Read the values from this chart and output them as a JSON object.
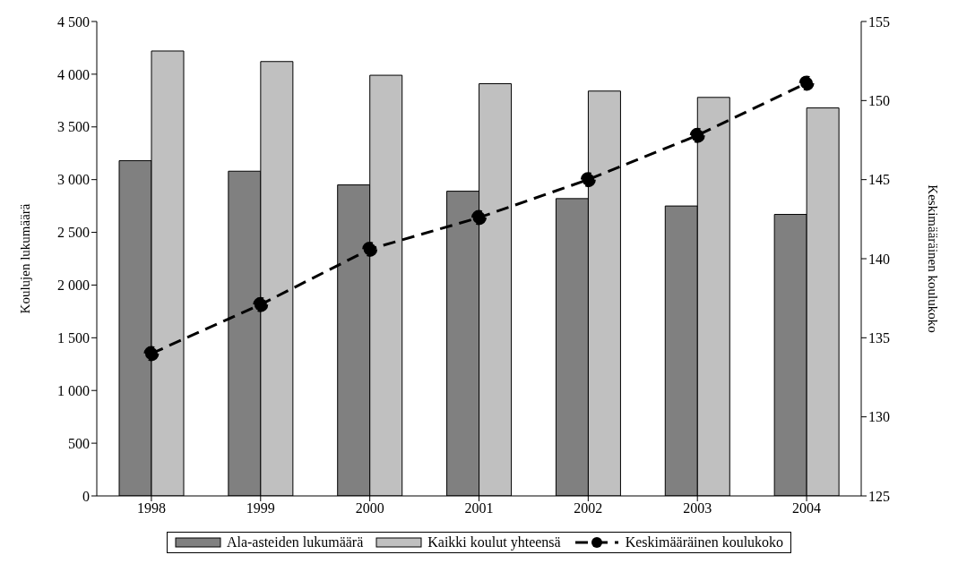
{
  "chart_data": {
    "type": "bar",
    "categories": [
      "1998",
      "1999",
      "2000",
      "2001",
      "2002",
      "2003",
      "2004"
    ],
    "ylabel": "Koulujen lukumäärä",
    "y2label": "Keskimääräinen koulukoko",
    "series": [
      {
        "name": "Ala-asteiden lukumäärä",
        "color": "#808080",
        "values": [
          3180,
          3080,
          2950,
          2890,
          2820,
          2750,
          2670
        ]
      },
      {
        "name": "Kaikki koulut yhteensä",
        "color": "#c0c0c0",
        "values": [
          4220,
          4120,
          3990,
          3910,
          3840,
          3780,
          3680
        ]
      },
      {
        "name": "Keskimääräinen koulukoko",
        "type": "line",
        "axis": "y2",
        "color": "#000000",
        "marker": "circle",
        "line_style": "dashed",
        "values": [
          134.0,
          137.1,
          140.6,
          142.6,
          145.0,
          147.8,
          151.1
        ]
      }
    ],
    "ylim": [
      0,
      4500
    ],
    "yticks": [
      0,
      500,
      {
        "value": 1000,
        "label": "1 000"
      },
      {
        "value": 1500,
        "label": "1 500"
      },
      {
        "value": 2000,
        "label": "2 000"
      },
      {
        "value": 2500,
        "label": "2 500"
      },
      {
        "value": 3000,
        "label": "3 000"
      },
      {
        "value": 3500,
        "label": "3 500"
      },
      {
        "value": 4000,
        "label": "4 000"
      },
      {
        "value": 4500,
        "label": "4 500"
      }
    ],
    "y2lim": [
      125,
      155
    ],
    "y2ticks": [
      125,
      130,
      135,
      140,
      145,
      150,
      155
    ],
    "grid": false,
    "legend": "bottom"
  }
}
